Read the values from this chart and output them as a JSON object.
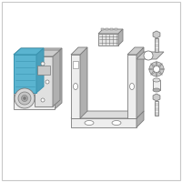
{
  "bg_color": "#ffffff",
  "border_color": "#c8c8c8",
  "line_color": "#7a7a7a",
  "blue_fill": "#5ab4d0",
  "blue_stroke": "#3a94b0",
  "gray_fill": "#e0e0e0",
  "gray_mid": "#cccccc",
  "gray_dark": "#b0b0b0",
  "gray_light": "#eeeeee",
  "white": "#ffffff"
}
